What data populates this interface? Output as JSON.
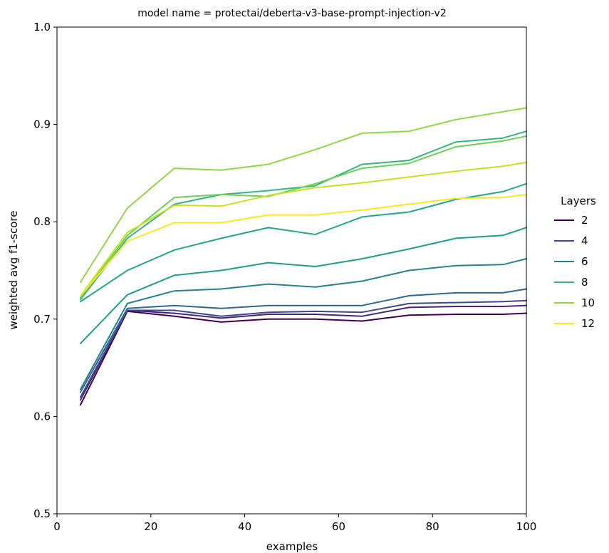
{
  "chart_data": {
    "type": "line",
    "title": "model name = protectai/deberta-v3-base-prompt-injection-v2",
    "xlabel": "examples",
    "ylabel": "weighted avg f1-score",
    "xlim": [
      0,
      100
    ],
    "ylim": [
      0.5,
      1.0
    ],
    "xticks": [
      0,
      20,
      40,
      60,
      80,
      100
    ],
    "yticks": [
      0.5,
      0.6,
      0.7,
      0.8,
      0.9,
      1.0
    ],
    "xtick_labels": [
      "0",
      "20",
      "40",
      "60",
      "80",
      "100"
    ],
    "ytick_labels": [
      "0.5",
      "0.6",
      "0.7",
      "0.8",
      "0.9",
      "1.0"
    ],
    "grid": false,
    "legend": {
      "title": "Layers",
      "placement": "outside-right"
    },
    "x": [
      5,
      15,
      25,
      35,
      45,
      55,
      65,
      75,
      85,
      95,
      100
    ],
    "series": [
      {
        "name": "2",
        "color": "#440154",
        "values": [
          0.612,
          0.708,
          0.703,
          0.697,
          0.7,
          0.7,
          0.698,
          0.704,
          0.705,
          0.705,
          0.706
        ]
      },
      {
        "name": "2",
        "color": "#482677",
        "values": [
          0.617,
          0.709,
          0.706,
          0.701,
          0.705,
          0.705,
          0.703,
          0.712,
          0.713,
          0.713,
          0.714
        ]
      },
      {
        "name": "4",
        "color": "#3e4989",
        "values": [
          0.62,
          0.709,
          0.709,
          0.703,
          0.707,
          0.708,
          0.707,
          0.716,
          0.717,
          0.718,
          0.719
        ]
      },
      {
        "name": "4",
        "color": "#31688e",
        "values": [
          0.625,
          0.711,
          0.714,
          0.711,
          0.714,
          0.714,
          0.714,
          0.724,
          0.727,
          0.727,
          0.731
        ]
      },
      {
        "name": "6",
        "color": "#26828e",
        "values": [
          0.628,
          0.716,
          0.729,
          0.731,
          0.736,
          0.733,
          0.739,
          0.75,
          0.755,
          0.756,
          0.762
        ]
      },
      {
        "name": "6",
        "color": "#1f9e89",
        "values": [
          0.675,
          0.725,
          0.745,
          0.75,
          0.758,
          0.754,
          0.762,
          0.772,
          0.783,
          0.786,
          0.794
        ]
      },
      {
        "name": "8",
        "color": "#22a884",
        "values": [
          0.718,
          0.75,
          0.771,
          0.783,
          0.794,
          0.787,
          0.805,
          0.81,
          0.823,
          0.831,
          0.839
        ]
      },
      {
        "name": "8",
        "color": "#35b779",
        "values": [
          0.72,
          0.783,
          0.818,
          0.828,
          0.832,
          0.837,
          0.859,
          0.863,
          0.882,
          0.886,
          0.893
        ]
      },
      {
        "name": "10",
        "color": "#6ece58",
        "values": [
          0.722,
          0.786,
          0.825,
          0.828,
          0.826,
          0.839,
          0.855,
          0.86,
          0.877,
          0.883,
          0.888
        ]
      },
      {
        "name": "10",
        "color": "#8fd744",
        "values": [
          0.738,
          0.814,
          0.855,
          0.853,
          0.859,
          0.874,
          0.891,
          0.893,
          0.905,
          0.913,
          0.917
        ]
      },
      {
        "name": "12",
        "color": "#c8e020",
        "values": [
          0.724,
          0.789,
          0.817,
          0.816,
          0.827,
          0.835,
          0.84,
          0.846,
          0.852,
          0.857,
          0.861
        ]
      },
      {
        "name": "12",
        "color": "#fde725",
        "values": [
          0.724,
          0.78,
          0.799,
          0.799,
          0.807,
          0.807,
          0.812,
          0.818,
          0.824,
          0.825,
          0.828
        ]
      }
    ],
    "legend_entries": [
      {
        "label": "2",
        "color": "#440154"
      },
      {
        "label": "4",
        "color": "#3e4989"
      },
      {
        "label": "6",
        "color": "#26828e"
      },
      {
        "label": "8",
        "color": "#35b779"
      },
      {
        "label": "10",
        "color": "#8fd744"
      },
      {
        "label": "12",
        "color": "#fde725"
      }
    ]
  }
}
